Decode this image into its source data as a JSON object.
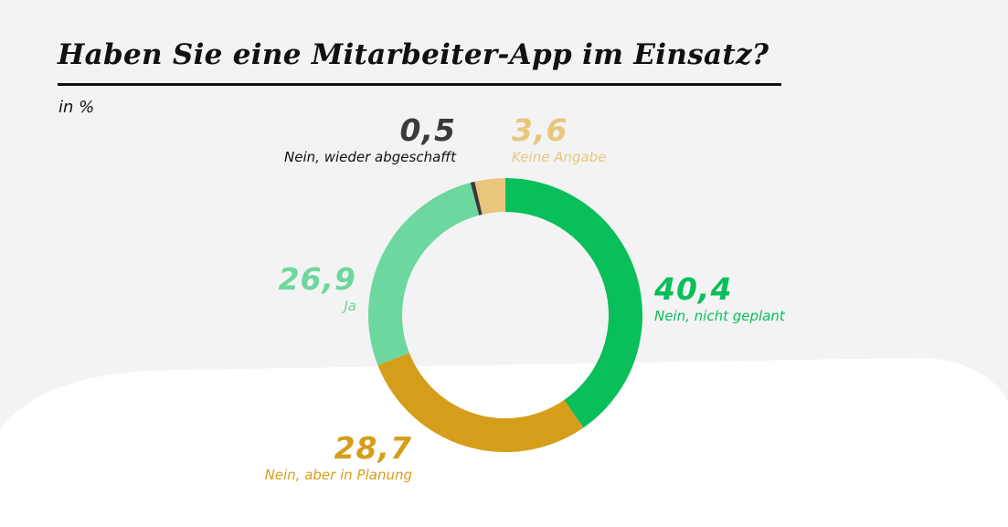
{
  "title": "Haben Sie eine Mitarbeiter-App im Einsatz?",
  "unit_label": "in %",
  "colors": {
    "background": "#f3f3f3",
    "wave": "#ffffff",
    "text": "#111111"
  },
  "chart_data": {
    "type": "pie",
    "variant": "donut",
    "title": "Haben Sie eine Mitarbeiter-App im Einsatz?",
    "unit": "in %",
    "slices": [
      {
        "label": "Nein, nicht geplant",
        "value": 40.4,
        "value_text": "40,4",
        "color": "#08bf5a"
      },
      {
        "label": "Nein, aber in Planung",
        "value": 28.7,
        "value_text": "28,7",
        "color": "#d59e1a"
      },
      {
        "label": "Ja",
        "value": 26.9,
        "value_text": "26,9",
        "color": "#6cd79e"
      },
      {
        "label": "Nein, wieder abgeschafft",
        "value": 0.5,
        "value_text": "0,5",
        "color": "#3a3a3a"
      },
      {
        "label": "Keine Angabe",
        "value": 3.6,
        "value_text": "3,6",
        "color": "#e8c77c"
      }
    ]
  }
}
